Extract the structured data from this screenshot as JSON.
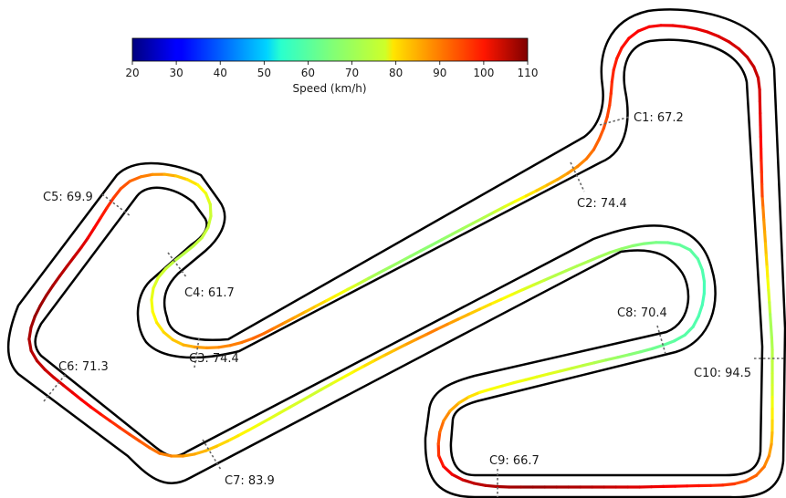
{
  "chart_data": {
    "type": "track-speed-map",
    "colorbar": {
      "label": "Speed (km/h)",
      "min": 20,
      "max": 110,
      "ticks": [
        20,
        30,
        40,
        50,
        60,
        70,
        80,
        90,
        100,
        110
      ],
      "colormap": "jet"
    },
    "corners": [
      {
        "name": "C1",
        "speed": 67.2,
        "text": "C1: 67.2"
      },
      {
        "name": "C2",
        "speed": 74.4,
        "text": "C2: 74.4"
      },
      {
        "name": "C3",
        "speed": 74.4,
        "text": "C3: 74.4"
      },
      {
        "name": "C4",
        "speed": 61.7,
        "text": "C4: 61.7"
      },
      {
        "name": "C5",
        "speed": 69.9,
        "text": "C5: 69.9"
      },
      {
        "name": "C6",
        "speed": 71.3,
        "text": "C6: 71.3"
      },
      {
        "name": "C7",
        "speed": 83.9,
        "text": "C7: 83.9"
      },
      {
        "name": "C8",
        "speed": 70.4,
        "text": "C8: 70.4"
      },
      {
        "name": "C9",
        "speed": 66.7,
        "text": "C9: 66.7"
      },
      {
        "name": "C10",
        "speed": 94.5,
        "text": "C10: 94.5"
      }
    ],
    "racing_line_speeds": [
      90,
      80,
      68,
      72,
      85,
      95,
      100,
      105,
      108,
      104,
      90,
      76,
      74,
      68,
      62,
      60,
      63,
      68,
      70,
      78,
      88,
      80,
      72,
      74,
      82,
      90,
      98,
      104,
      108,
      104,
      95,
      85,
      72,
      70,
      76,
      85,
      90,
      80,
      68,
      66,
      70,
      82,
      90,
      95,
      99,
      101,
      104,
      100,
      92
    ]
  }
}
